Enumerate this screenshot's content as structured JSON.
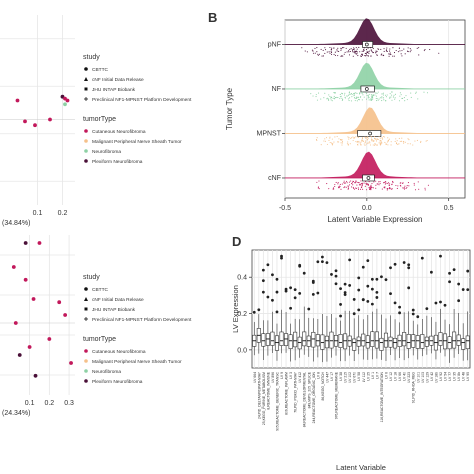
{
  "panel_labels": {
    "b": "B",
    "d": "D"
  },
  "legend_top": {
    "study_title": "study",
    "study_items": [
      {
        "label": "CBTTC",
        "color": "#111111",
        "shape": "circle"
      },
      {
        "label": "cNF Initial Data Release",
        "color": "#111111",
        "shape": "triangle"
      },
      {
        "label": "JHU INTAP Biobank",
        "color": "#111111",
        "shape": "square"
      },
      {
        "label": "Preclinical NF1-MPNST Platform Development",
        "color": "#111111",
        "shape": "plus"
      }
    ],
    "tumor_title": "tumorType",
    "tumor_items": [
      {
        "label": "Cutaneous Neurofibroma",
        "color": "#c2185b"
      },
      {
        "label": "Malignant Peripheral Nerve Sheath Tumor",
        "color": "#f5c08a"
      },
      {
        "label": "Neurofibroma",
        "color": "#8ed1a5"
      },
      {
        "label": "Plexiform Neurofibroma",
        "color": "#4a1038"
      }
    ]
  },
  "legend_bottom": {
    "study_title": "study",
    "study_items": [
      {
        "label": "CBTTC",
        "color": "#111111",
        "shape": "circle"
      },
      {
        "label": "cNF Initial Data Release",
        "color": "#111111",
        "shape": "triangle"
      },
      {
        "label": "JHU INTAP Biobank",
        "color": "#111111",
        "shape": "square"
      },
      {
        "label": "Preclinical NF1-MPNST Platform Development",
        "color": "#111111",
        "shape": "plus"
      }
    ],
    "tumor_title": "tumorType",
    "tumor_items": [
      {
        "label": "Cutaneous Neurofibroma",
        "color": "#c2185b"
      },
      {
        "label": "Malignant Peripheral Nerve Sheath Tumor",
        "color": "#f5c08a"
      },
      {
        "label": "Neurofibroma",
        "color": "#8ed1a5"
      },
      {
        "label": "Plexiform Neurofibroma",
        "color": "#4a1038"
      }
    ]
  },
  "chart_data": [
    {
      "panel": "A-top",
      "type": "scatter",
      "xlabel": "(34.84%)",
      "x_ticks": [
        "0.1",
        "0.2"
      ],
      "points": [
        {
          "x": 0.02,
          "y": 0.55,
          "group": "Cutaneous Neurofibroma"
        },
        {
          "x": 0.05,
          "y": 0.44,
          "group": "Cutaneous Neurofibroma"
        },
        {
          "x": 0.09,
          "y": 0.42,
          "group": "Cutaneous Neurofibroma"
        },
        {
          "x": 0.2,
          "y": 0.57,
          "group": "Plexiform Neurofibroma"
        },
        {
          "x": 0.21,
          "y": 0.56,
          "group": "Cutaneous Neurofibroma"
        },
        {
          "x": 0.22,
          "y": 0.55,
          "group": "Cutaneous Neurofibroma"
        },
        {
          "x": 0.21,
          "y": 0.53,
          "group": "Neurofibroma"
        },
        {
          "x": 0.15,
          "y": 0.45,
          "group": "Cutaneous Neurofibroma"
        }
      ]
    },
    {
      "panel": "A-bottom",
      "type": "scatter",
      "xlabel": "(24.34%)",
      "x_ticks": [
        "0.1",
        "0.2",
        "0.3"
      ],
      "points": [
        {
          "x": 0.08,
          "y": 0.95,
          "group": "Plexiform Neurofibroma"
        },
        {
          "x": 0.15,
          "y": 0.95,
          "group": "Cutaneous Neurofibroma"
        },
        {
          "x": 0.02,
          "y": 0.8,
          "group": "Cutaneous Neurofibroma"
        },
        {
          "x": 0.08,
          "y": 0.72,
          "group": "Cutaneous Neurofibroma"
        },
        {
          "x": 0.12,
          "y": 0.6,
          "group": "Cutaneous Neurofibroma"
        },
        {
          "x": 0.25,
          "y": 0.58,
          "group": "Cutaneous Neurofibroma"
        },
        {
          "x": 0.28,
          "y": 0.5,
          "group": "Cutaneous Neurofibroma"
        },
        {
          "x": 0.03,
          "y": 0.45,
          "group": "Cutaneous Neurofibroma"
        },
        {
          "x": 0.1,
          "y": 0.3,
          "group": "Cutaneous Neurofibroma"
        },
        {
          "x": 0.2,
          "y": 0.35,
          "group": "Cutaneous Neurofibroma"
        },
        {
          "x": 0.31,
          "y": 0.2,
          "group": "Cutaneous Neurofibroma"
        },
        {
          "x": 0.13,
          "y": 0.12,
          "group": "Plexiform Neurofibroma"
        },
        {
          "x": 0.05,
          "y": 0.25,
          "group": "Plexiform Neurofibroma"
        }
      ]
    },
    {
      "panel": "B",
      "type": "raincloud",
      "xlabel": "Latent Variable Expression",
      "ylabel": "Tumor Type",
      "xlim": [
        -0.5,
        0.6
      ],
      "x_ticks": [
        -0.5,
        0.0,
        0.5
      ],
      "x_tick_labels": [
        "-0.5",
        "0.0",
        "0.5"
      ],
      "categories": [
        "pNF",
        "NF",
        "MPNST",
        "cNF"
      ],
      "series": [
        {
          "name": "pNF",
          "color": "#4a1038",
          "median": 0.0,
          "q1": -0.02,
          "q3": 0.03,
          "spread": 0.45
        },
        {
          "name": "NF",
          "color": "#8ed1a5",
          "median": 0.0,
          "q1": -0.03,
          "q3": 0.04,
          "spread": 0.4
        },
        {
          "name": "MPNST",
          "color": "#f5c08a",
          "median": 0.02,
          "q1": -0.05,
          "q3": 0.08,
          "spread": 0.4
        },
        {
          "name": "cNF",
          "color": "#c2185b",
          "median": 0.01,
          "q1": -0.02,
          "q3": 0.04,
          "spread": 0.38
        }
      ]
    },
    {
      "panel": "D",
      "type": "boxplot",
      "xlabel": "Latent Variable",
      "ylabel": "LV Expression",
      "ylim": [
        -0.1,
        0.55
      ],
      "y_ticks": [
        0.0,
        0.2,
        0.4
      ],
      "y_tick_labels": [
        "0.0",
        "0.2",
        "0.4"
      ],
      "categories": [
        "LV 664",
        "24,PID_DELTANP63PATHWAY",
        "25,KEGG_PURINE_METABOLISM",
        "8,REACTOME_IMMUNE",
        "LV 896",
        "905,REACTOME_GENERIC_TRANSC",
        "LV 9",
        "806,REACTOME_INFLAMM",
        "LV 3",
        "76,PID_PI3KCI_PATHWAY",
        "LV 412",
        "84,REACTOME_DEVELOPMENTAL",
        "849,MIPS_205_SPLICE",
        "244,REACTOME_ORGANIC_ION",
        "LV 8",
        "86,KEGG_NOTCH",
        "LV 447",
        "LV 17",
        "976,REACTOME_MEMBRANE",
        "LV 38",
        "LV 215",
        "LV 102",
        "LV 670",
        "LV 58",
        "LV 112",
        "LV 25",
        "LV 1",
        "LV 7",
        "116,REACTOME_INTEGRATION",
        "LV 6",
        "LV 12",
        "LV 18",
        "LV 66",
        "LV 40",
        "LV 223",
        "91,PID_RHOA_REG",
        "LV 101",
        "LV 103",
        "LV 129",
        "LV 42",
        "LV 18b",
        "LV 92",
        "LV 54",
        "LV 77",
        "LV 35",
        "LV 8b",
        "LV 48",
        "LV 95"
      ],
      "values_median": [
        0.05,
        0.08,
        0.05,
        0.06,
        0.05,
        0.04,
        0.05,
        0.06,
        0.05,
        0.05,
        0.04,
        0.05,
        0.05,
        0.06,
        0.05,
        0.04,
        0.05,
        0.05,
        0.05,
        0.04,
        0.05,
        0.05,
        0.04,
        0.05,
        0.05,
        0.04,
        0.05,
        0.05,
        0.04,
        0.05,
        0.05,
        0.04,
        0.05,
        0.05,
        0.04,
        0.05,
        0.05,
        0.04,
        0.05,
        0.05,
        0.04,
        0.05,
        0.05,
        0.04,
        0.05,
        0.05,
        0.04,
        0.05
      ]
    }
  ]
}
